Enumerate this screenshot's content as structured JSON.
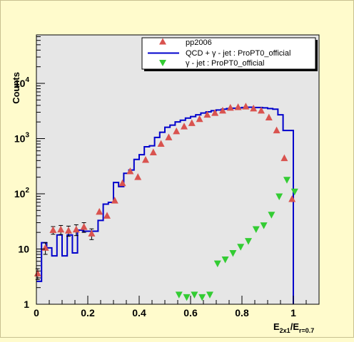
{
  "chart_data": {
    "type": "line",
    "title": "",
    "xlabel": "E_2x1/E_r=0.7",
    "xlabel_parts": {
      "e1": "E",
      "s1": "2x1",
      "slash": "/E",
      "s2": "r=0.7"
    },
    "ylabel": "Counts",
    "xlim": [
      0,
      1.1
    ],
    "ylim": [
      1,
      70000
    ],
    "yscale": "log",
    "grid": false,
    "legend_position": "top-right",
    "x_ticks": [
      "0",
      "0.2",
      "0.4",
      "0.6",
      "0.8",
      "1"
    ],
    "x_tick_values": [
      0,
      0.2,
      0.4,
      0.6,
      0.8,
      1.0
    ],
    "y_ticks": [
      {
        "value": 1,
        "base": "1",
        "exp": ""
      },
      {
        "value": 10,
        "base": "10",
        "exp": ""
      },
      {
        "value": 100,
        "base": "10",
        "exp": "2"
      },
      {
        "value": 1000,
        "base": "10",
        "exp": "3"
      },
      {
        "value": 10000,
        "base": "10",
        "exp": "4"
      }
    ],
    "colors": {
      "background": "#fffbcc",
      "plot_area": "#e6e6e6",
      "pp2006": "#d9534f",
      "qcd_line": "#0000cc",
      "gamma_jet": "#33cc33"
    },
    "series": [
      {
        "name": "pp2006",
        "style": "triangle-up",
        "x": [
          0.005,
          0.035,
          0.065,
          0.095,
          0.125,
          0.155,
          0.185,
          0.215,
          0.245,
          0.275,
          0.305,
          0.335,
          0.365,
          0.395,
          0.425,
          0.455,
          0.485,
          0.515,
          0.545,
          0.575,
          0.605,
          0.635,
          0.665,
          0.695,
          0.725,
          0.755,
          0.785,
          0.815,
          0.845,
          0.875,
          0.905,
          0.935,
          0.965,
          0.995
        ],
        "y": [
          3.6,
          10.5,
          22,
          22.5,
          21.5,
          22.5,
          25,
          19,
          47,
          40,
          75,
          155,
          255,
          200,
          410,
          560,
          800,
          1050,
          1350,
          1650,
          1900,
          2250,
          2700,
          2900,
          3200,
          3600,
          3700,
          3800,
          3500,
          3200,
          2400,
          1400,
          440,
          80
        ],
        "err": [
          0.8,
          2.5,
          3.5,
          4.2,
          4.5,
          5,
          5,
          4.2,
          0,
          0,
          0,
          0,
          0,
          0,
          0,
          0,
          0,
          0,
          0,
          0,
          0,
          0,
          0,
          0,
          0,
          0,
          0,
          0,
          0,
          0,
          0,
          0,
          0,
          0
        ]
      },
      {
        "name": "QCD + γ - jet : ProPT0_official",
        "style": "step",
        "edges": [
          0.0,
          0.01,
          0.02,
          0.03,
          0.04,
          0.05,
          0.06,
          0.07,
          0.08,
          0.09,
          0.1,
          0.11,
          0.12,
          0.13,
          0.14,
          0.15,
          0.16,
          0.17,
          0.18,
          0.19,
          0.2,
          0.21,
          0.22,
          0.23,
          0.24,
          0.25,
          0.26,
          0.27,
          0.28,
          0.29,
          0.3,
          0.31,
          0.32,
          0.33,
          0.34,
          0.35,
          0.36,
          0.37,
          0.38,
          0.39,
          0.4,
          0.41,
          0.42,
          0.43,
          0.44,
          0.45,
          0.46,
          0.47,
          0.48,
          0.49,
          0.5,
          0.51,
          0.52,
          0.53,
          0.54,
          0.55,
          0.56,
          0.57,
          0.58,
          0.59,
          0.6,
          0.61,
          0.62,
          0.63,
          0.64,
          0.65,
          0.66,
          0.67,
          0.68,
          0.69,
          0.7,
          0.71,
          0.72,
          0.73,
          0.74,
          0.75,
          0.76,
          0.77,
          0.78,
          0.79,
          0.8,
          0.81,
          0.82,
          0.83,
          0.84,
          0.85,
          0.86,
          0.87,
          0.88,
          0.89,
          0.9,
          0.91,
          0.92,
          0.93,
          0.94,
          0.95,
          0.96,
          0.97,
          0.98,
          0.99,
          1.0
        ],
        "values": [
          2.6,
          2.6,
          13,
          13,
          10.5,
          10.5,
          7.5,
          7.5,
          18,
          18,
          7.5,
          7.5,
          18,
          18,
          8.5,
          8.5,
          22,
          22,
          21,
          21,
          21,
          21,
          21,
          21,
          33,
          33,
          65,
          65,
          70,
          70,
          160,
          160,
          135,
          135,
          235,
          235,
          270,
          270,
          420,
          420,
          510,
          510,
          710,
          710,
          740,
          740,
          1050,
          1050,
          1300,
          1300,
          1600,
          1600,
          1750,
          1750,
          2000,
          2000,
          2150,
          2150,
          2350,
          2350,
          2500,
          2500,
          2700,
          2700,
          2900,
          2900,
          3050,
          3050,
          3200,
          3200,
          3300,
          3300,
          3400,
          3400,
          3500,
          3500,
          3550,
          3550,
          3600,
          3600,
          3650,
          3650,
          3700,
          3700,
          3650,
          3650,
          3650,
          3650,
          3600,
          3600,
          3500,
          3500,
          3400,
          3400,
          2700,
          2700,
          1400,
          1400,
          1400,
          1400
        ],
        "drop_to": 1
      },
      {
        "name": "γ - jet : ProPT0_official",
        "style": "triangle-down",
        "x": [
          0.555,
          0.585,
          0.615,
          0.645,
          0.675,
          0.705,
          0.735,
          0.765,
          0.795,
          0.825,
          0.855,
          0.885,
          0.915,
          0.945,
          0.975,
          1.005
        ],
        "y": [
          1.5,
          1.35,
          1.5,
          1.35,
          1.5,
          5.5,
          6.5,
          8.5,
          11,
          14,
          23,
          27,
          42,
          90,
          180,
          110
        ]
      }
    ]
  }
}
